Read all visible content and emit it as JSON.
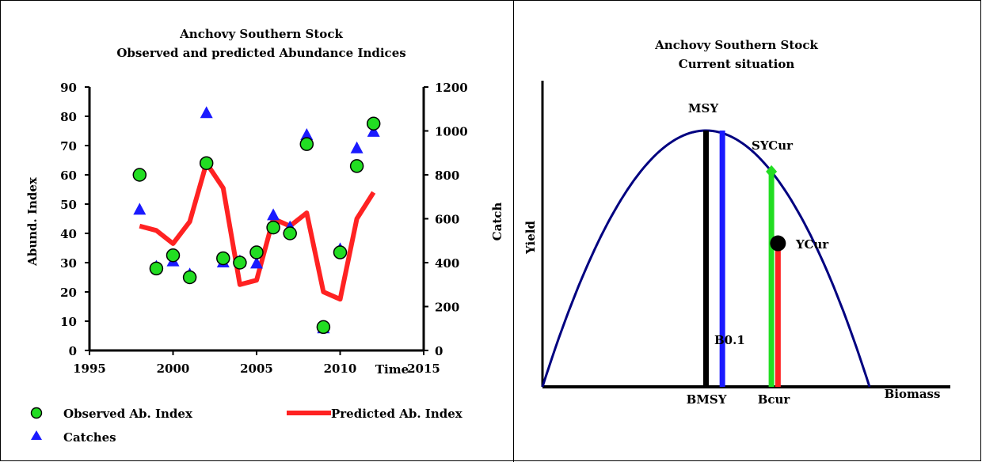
{
  "chart_data": [
    {
      "type": "scatter",
      "title": [
        "Anchovy  Southern Stock",
        "Observed and predicted Abundance Indices"
      ],
      "xlabel": "Time",
      "ylabel": "Abund. Index",
      "y2label": "Catch",
      "xlim": [
        1995,
        2015
      ],
      "ylim": [
        0,
        90
      ],
      "y2lim": [
        0,
        1200
      ],
      "xticks": [
        "1995",
        "2000",
        "2005",
        "2010",
        "2015"
      ],
      "yticks": [
        "0",
        "10",
        "20",
        "30",
        "40",
        "50",
        "60",
        "70",
        "80",
        "90"
      ],
      "y2ticks": [
        "0",
        "200",
        "400",
        "600",
        "800",
        "1000",
        "1200"
      ],
      "legend_position": "bottom",
      "colors": {
        "observed": "#22dd22",
        "predicted": "#ff2222",
        "catches": "#1a1aff"
      },
      "series": [
        {
          "name": "Observed Ab. Index",
          "type": "scatter",
          "axis": "left",
          "x": [
            1998,
            1999,
            2000,
            2001,
            2002,
            2003,
            2004,
            2005,
            2006,
            2007,
            2008,
            2009,
            2010,
            2011,
            2012
          ],
          "y": [
            60,
            28,
            32.5,
            25,
            64,
            31.5,
            30,
            33.5,
            42,
            40,
            70.5,
            8,
            33.5,
            63,
            77.5
          ]
        },
        {
          "name": "Predicted Ab. Index",
          "type": "line",
          "axis": "left",
          "x": [
            1998,
            1999,
            2000,
            2001,
            2002,
            2003,
            2004,
            2005,
            2006,
            2007,
            2008,
            2009,
            2010,
            2011,
            2012
          ],
          "y": [
            42.5,
            41,
            36.5,
            44,
            64,
            55.5,
            22.5,
            24,
            45,
            42.5,
            47,
            20,
            17.5,
            45,
            54
          ]
        },
        {
          "name": "Catches",
          "type": "scatter",
          "axis": "right",
          "x": [
            1998,
            1999,
            2000,
            2001,
            2002,
            2003,
            2004,
            2005,
            2006,
            2007,
            2008,
            2009,
            2010,
            2011,
            2012
          ],
          "y": [
            640,
            380,
            405,
            345,
            1080,
            400,
            405,
            395,
            615,
            560,
            980,
            100,
            460,
            920,
            995
          ]
        }
      ]
    },
    {
      "type": "line",
      "title": [
        "Anchovy Southern Stock",
        "Current situation"
      ],
      "xlabel": "Biomass",
      "ylabel": "Yield",
      "curve": {
        "name": "yield-curve",
        "color": "#000080",
        "x_range": [
          0,
          1
        ],
        "peak_x": 0.5,
        "peak_y": 1
      },
      "reference_lines": [
        {
          "label": "BMSY",
          "x": 0.5,
          "y_top": 1.0,
          "color": "#000000"
        },
        {
          "label": "B0.1",
          "x": 0.55,
          "y_top": 1.0,
          "color": "#1a1aff"
        },
        {
          "label": "Bcur",
          "x": 0.7,
          "y_top": 0.84,
          "color": "#22dd22"
        },
        {
          "label": "Bcur-yield",
          "x": 0.72,
          "y_top": 0.56,
          "color": "#ff2222"
        }
      ],
      "points": [
        {
          "label": "SYCur",
          "x": 0.7,
          "y": 0.84,
          "color": "#22dd22"
        },
        {
          "label": "YCur",
          "x": 0.72,
          "y": 0.56,
          "color": "#000000"
        }
      ],
      "annotations": {
        "msy": "MSY",
        "sycur": "SYCur",
        "ycur": "YCur",
        "b01": "B0.1",
        "bmsy": "BMSY",
        "bcur": "Bcur"
      }
    }
  ]
}
